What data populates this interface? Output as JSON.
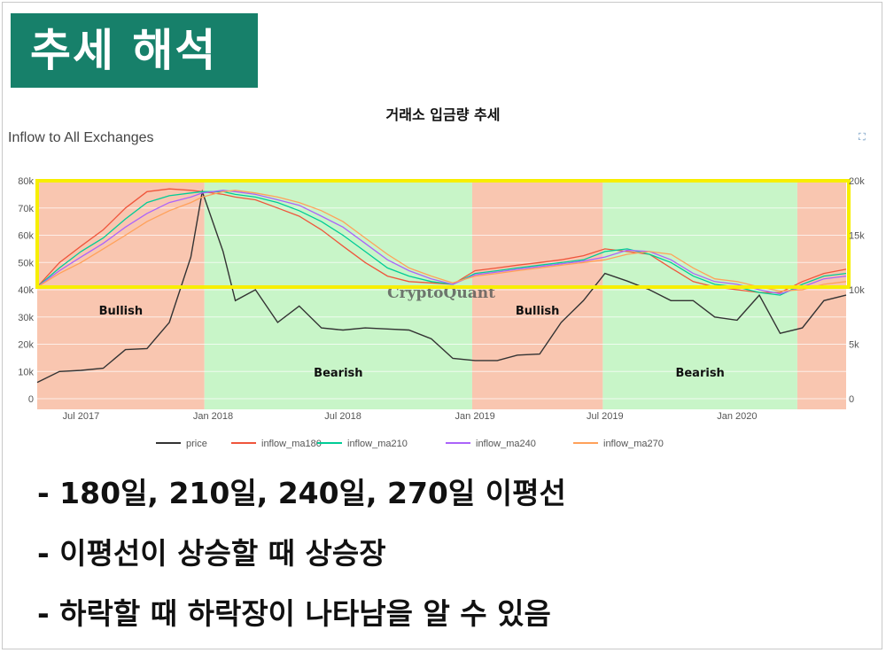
{
  "header": {
    "banner_title": "추세 해석"
  },
  "chart_data": {
    "type": "line",
    "title": "거래소 입금량 추세",
    "subtitle": "Inflow to All Exchanges",
    "watermark": "CryptoQuant",
    "x_ticks": [
      "Jul 2017",
      "Jan 2018",
      "Jul 2018",
      "Jan 2019",
      "Jul 2019",
      "Jan 2020"
    ],
    "y_left_ticks": [
      "0",
      "10k",
      "20k",
      "30k",
      "40k",
      "50k",
      "60k",
      "70k",
      "80k"
    ],
    "y_left_range": [
      0,
      80000
    ],
    "y_right_ticks": [
      "0",
      "5k",
      "10k",
      "15k",
      "20k"
    ],
    "y_right_range": [
      0,
      20000
    ],
    "grid": true,
    "legend_position": "bottom",
    "x_dates": [
      "2017-05-01",
      "2017-06-01",
      "2017-07-01",
      "2017-08-01",
      "2017-09-01",
      "2017-10-01",
      "2017-11-01",
      "2017-12-01",
      "2017-12-17",
      "2018-01-15",
      "2018-02-01",
      "2018-03-01",
      "2018-04-01",
      "2018-05-01",
      "2018-06-01",
      "2018-07-01",
      "2018-08-01",
      "2018-09-01",
      "2018-10-01",
      "2018-11-01",
      "2018-12-01",
      "2019-01-01",
      "2019-02-01",
      "2019-03-01",
      "2019-04-01",
      "2019-05-01",
      "2019-06-01",
      "2019-07-01",
      "2019-08-01",
      "2019-09-01",
      "2019-10-01",
      "2019-11-01",
      "2019-12-01",
      "2020-01-01",
      "2020-02-01",
      "2020-03-01",
      "2020-04-01",
      "2020-05-01",
      "2020-06-01"
    ],
    "series": [
      {
        "name": "price",
        "axis": "right",
        "color": "#333333",
        "values": [
          1500,
          2500,
          2600,
          2800,
          4500,
          4600,
          7000,
          13000,
          19000,
          13500,
          9000,
          10000,
          7000,
          8500,
          6500,
          6300,
          6500,
          6400,
          6300,
          5500,
          3700,
          3500,
          3500,
          4000,
          4100,
          7000,
          9000,
          11500,
          10800,
          10000,
          9000,
          9000,
          7500,
          7200,
          9500,
          6000,
          6500,
          9000,
          9500
        ]
      },
      {
        "name": "inflow_ma180",
        "axis": "left",
        "color": "#ef553b",
        "values": [
          41000,
          50000,
          56000,
          62000,
          70000,
          76000,
          77000,
          76500,
          76000,
          75000,
          74000,
          73000,
          70000,
          67000,
          62000,
          56000,
          50000,
          45000,
          43000,
          42500,
          42000,
          47000,
          48000,
          49000,
          50000,
          51000,
          52500,
          55000,
          54000,
          53000,
          48000,
          43000,
          41000,
          40000,
          39000,
          39000,
          43000,
          46000,
          47500
        ]
      },
      {
        "name": "inflow_ma210",
        "axis": "left",
        "color": "#00cc96",
        "values": [
          41000,
          48000,
          54000,
          59000,
          66000,
          72000,
          74500,
          75500,
          76000,
          76000,
          75000,
          74000,
          72000,
          69000,
          65000,
          60000,
          54000,
          48000,
          45000,
          43000,
          42000,
          46000,
          47000,
          48000,
          49000,
          50000,
          51000,
          54000,
          55000,
          53000,
          50000,
          45000,
          42000,
          41000,
          39000,
          38000,
          42000,
          45000,
          46000
        ]
      },
      {
        "name": "inflow_ma240",
        "axis": "left",
        "color": "#ab63fa",
        "values": [
          41000,
          47000,
          52000,
          57000,
          63000,
          68000,
          72000,
          74000,
          75500,
          76500,
          76000,
          75000,
          73000,
          71000,
          67000,
          63000,
          57000,
          51000,
          47000,
          44000,
          42000,
          45500,
          46500,
          47500,
          48500,
          49500,
          50500,
          52000,
          54500,
          54000,
          51000,
          46000,
          43000,
          42000,
          40000,
          38500,
          41000,
          44000,
          45000
        ]
      },
      {
        "name": "inflow_ma270",
        "axis": "left",
        "color": "#ffa15a",
        "values": [
          41000,
          46000,
          50000,
          55000,
          60000,
          65000,
          69000,
          72000,
          74000,
          76000,
          76500,
          75500,
          74000,
          72000,
          69000,
          65000,
          59000,
          53000,
          48000,
          45000,
          42500,
          45000,
          46000,
          47000,
          48000,
          49000,
          50000,
          51000,
          53000,
          54000,
          53000,
          48000,
          44000,
          43000,
          41000,
          39500,
          40000,
          42000,
          43000
        ]
      }
    ],
    "regions": [
      {
        "start": "2017-05-01",
        "end": "2017-12-20",
        "label": "Bullish",
        "color": "#f9c6b0"
      },
      {
        "start": "2017-12-20",
        "end": "2018-12-28",
        "label": "Bearish",
        "color": "#c8f5c8"
      },
      {
        "start": "2018-12-28",
        "end": "2019-06-28",
        "label": "Bullish",
        "color": "#f9c6b0"
      },
      {
        "start": "2019-06-28",
        "end": "2020-03-25",
        "label": "Bearish",
        "color": "#c8f5c8"
      },
      {
        "start": "2020-03-25",
        "end": "2020-06-01",
        "label": "",
        "color": "#f9c6b0"
      }
    ],
    "highlight_color": "#f7ee00"
  },
  "bullets": [
    "- 180일, 210일, 240일, 270일 이평선",
    "- 이평선이 상승할 때 상승장",
    "- 하락할 때 하락장이 나타남을 알 수 있음"
  ]
}
